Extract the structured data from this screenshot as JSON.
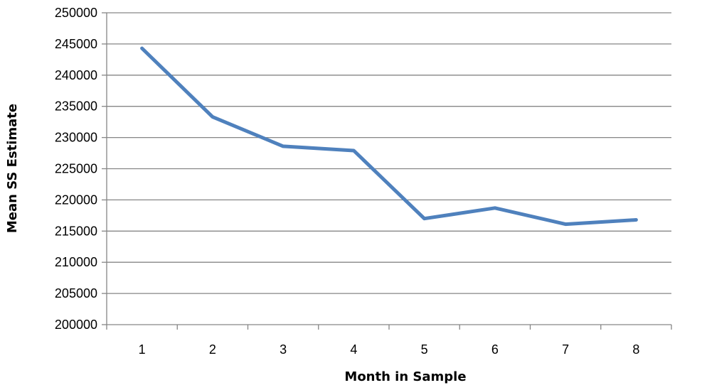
{
  "chart_data": {
    "type": "line",
    "title": "",
    "xlabel": "Month in Sample",
    "ylabel": "Mean SS Estimate",
    "categories": [
      "1",
      "2",
      "3",
      "4",
      "5",
      "6",
      "7",
      "8"
    ],
    "series": [
      {
        "values": [
          244300,
          233300,
          228600,
          227900,
          217000,
          218700,
          216100,
          216800
        ],
        "color": "#4F81BD"
      }
    ],
    "ylim": [
      200000,
      250000
    ],
    "yticks": [
      "200000",
      "205000",
      "210000",
      "215000",
      "220000",
      "225000",
      "230000",
      "235000",
      "240000",
      "245000",
      "250000"
    ],
    "grid": true,
    "legend": "none"
  }
}
